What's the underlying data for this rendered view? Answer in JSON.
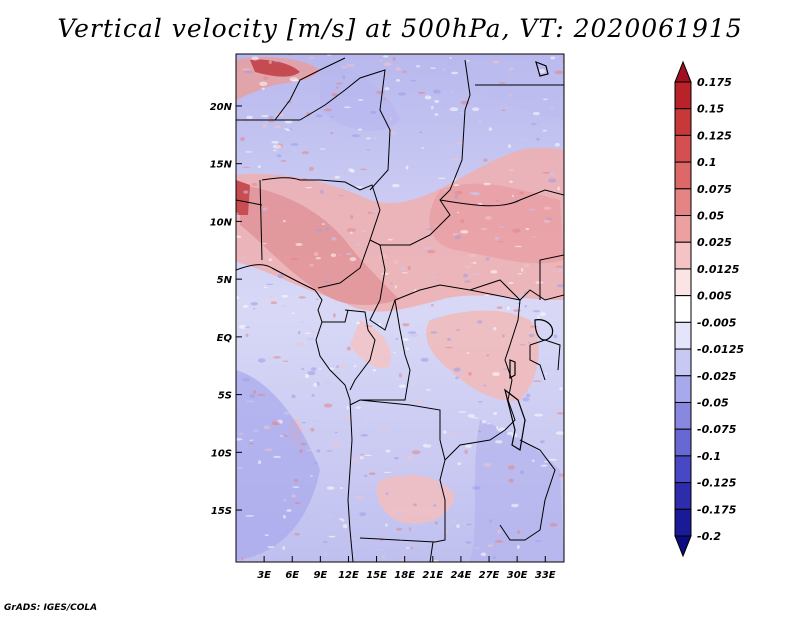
{
  "title": "Vertical velocity [m/s] at 500hPa, VT: 2020061915",
  "footer": "GrADS: IGES/COLA",
  "map": {
    "lat_ticks": [
      "20N",
      "15N",
      "10N",
      "5N",
      "EQ",
      "5S",
      "10S",
      "15S"
    ],
    "lon_ticks": [
      "3E",
      "6E",
      "9E",
      "12E",
      "15E",
      "18E",
      "21E",
      "24E",
      "27E",
      "30E",
      "33E"
    ],
    "lat_values": [
      20,
      15,
      10,
      5,
      0,
      -5,
      -10,
      -15
    ],
    "lon_values": [
      3,
      6,
      9,
      12,
      15,
      18,
      21,
      24,
      27,
      30,
      33
    ],
    "lon_range": [
      0,
      35
    ],
    "lat_range": [
      -19.5,
      24.5
    ]
  },
  "colorbar": {
    "labels": [
      "0.175",
      "0.15",
      "0.125",
      "0.1",
      "0.075",
      "0.05",
      "0.025",
      "0.0125",
      "0.005",
      "-0.005",
      "-0.0125",
      "-0.025",
      "-0.05",
      "-0.075",
      "-0.1",
      "-0.125",
      "-0.175",
      "-0.2"
    ],
    "colors": [
      "#a01020",
      "#b82228",
      "#c83838",
      "#d45050",
      "#dc6868",
      "#e48484",
      "#eca0a0",
      "#f4c4c4",
      "#fae4e4",
      "#ffffff",
      "#e4e4fa",
      "#c8c8f4",
      "#a8a8ec",
      "#8888e0",
      "#6868d4",
      "#4848c4",
      "#2c2cac",
      "#1a1a96",
      "#0c0c80"
    ]
  }
}
